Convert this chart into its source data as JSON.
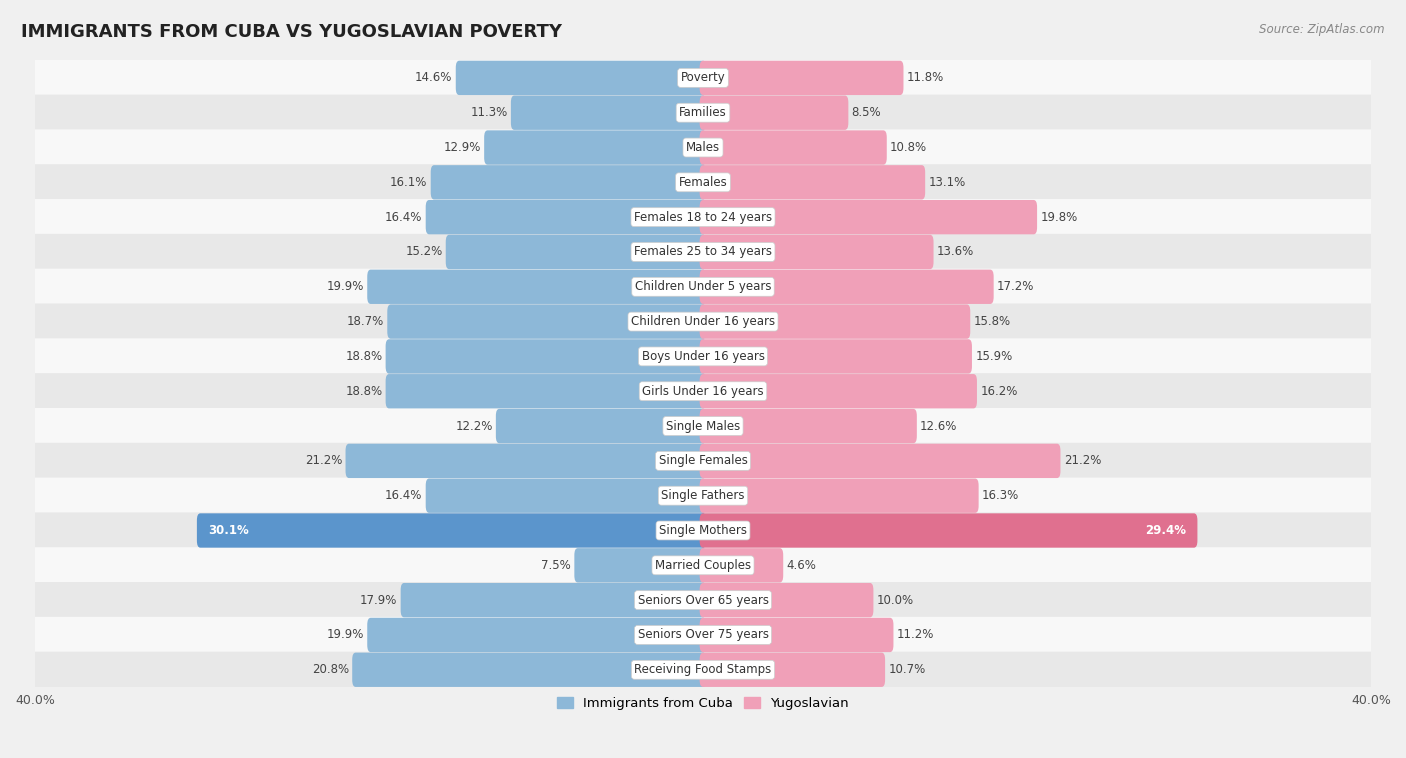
{
  "title": "IMMIGRANTS FROM CUBA VS YUGOSLAVIAN POVERTY",
  "source": "Source: ZipAtlas.com",
  "categories": [
    "Poverty",
    "Families",
    "Males",
    "Females",
    "Females 18 to 24 years",
    "Females 25 to 34 years",
    "Children Under 5 years",
    "Children Under 16 years",
    "Boys Under 16 years",
    "Girls Under 16 years",
    "Single Males",
    "Single Females",
    "Single Fathers",
    "Single Mothers",
    "Married Couples",
    "Seniors Over 65 years",
    "Seniors Over 75 years",
    "Receiving Food Stamps"
  ],
  "cuba_values": [
    14.6,
    11.3,
    12.9,
    16.1,
    16.4,
    15.2,
    19.9,
    18.7,
    18.8,
    18.8,
    12.2,
    21.2,
    16.4,
    30.1,
    7.5,
    17.9,
    19.9,
    20.8
  ],
  "yugo_values": [
    11.8,
    8.5,
    10.8,
    13.1,
    19.8,
    13.6,
    17.2,
    15.8,
    15.9,
    16.2,
    12.6,
    21.2,
    16.3,
    29.4,
    4.6,
    10.0,
    11.2,
    10.7
  ],
  "cuba_color": "#8db8d8",
  "yugo_color": "#f0a0b8",
  "cuba_highlight_color": "#5b95cc",
  "yugo_highlight_color": "#e0708f",
  "bg_color": "#f0f0f0",
  "row_color_odd": "#f8f8f8",
  "row_color_even": "#e8e8e8",
  "max_val": 40.0,
  "bar_height": 0.58,
  "title_fontsize": 13,
  "label_fontsize": 8.5,
  "value_fontsize": 8.5,
  "legend_fontsize": 9.5,
  "source_fontsize": 8.5
}
